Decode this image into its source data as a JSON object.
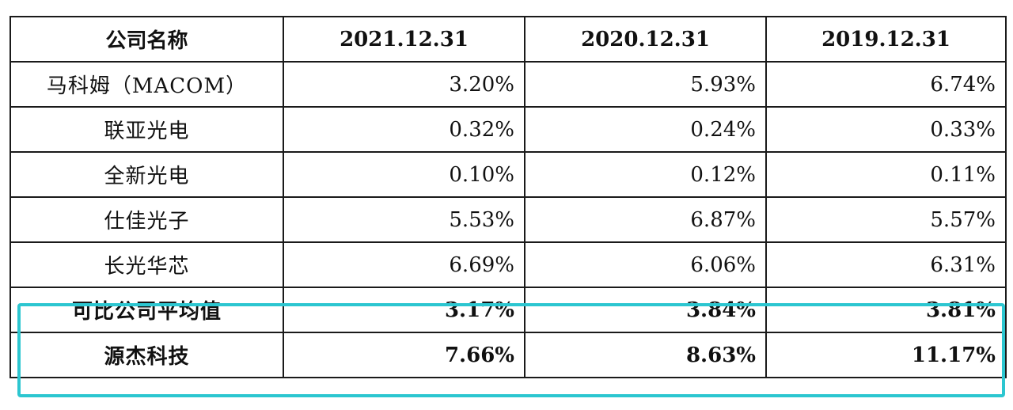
{
  "table": {
    "headers": [
      "公司名称",
      "2021.12.31",
      "2020.12.31",
      "2019.12.31"
    ],
    "rows": [
      {
        "name": "马科姆（MACOM）",
        "values": [
          "3.20%",
          "5.93%",
          "6.74%"
        ]
      },
      {
        "name": "联亚光电",
        "values": [
          "0.32%",
          "0.24%",
          "0.33%"
        ]
      },
      {
        "name": "全新光电",
        "values": [
          "0.10%",
          "0.12%",
          "0.11%"
        ]
      },
      {
        "name": "仕佳光子",
        "values": [
          "5.53%",
          "6.87%",
          "5.57%"
        ]
      },
      {
        "name": "长光华芯",
        "values": [
          "6.69%",
          "6.06%",
          "6.31%"
        ]
      }
    ],
    "summary_rows": [
      {
        "name": "可比公司平均值",
        "values": [
          "3.17%",
          "3.84%",
          "3.81%"
        ]
      },
      {
        "name": "源杰科技",
        "values": [
          "7.66%",
          "8.63%",
          "11.17%"
        ]
      }
    ]
  },
  "highlight_color": "#2cc6d0"
}
